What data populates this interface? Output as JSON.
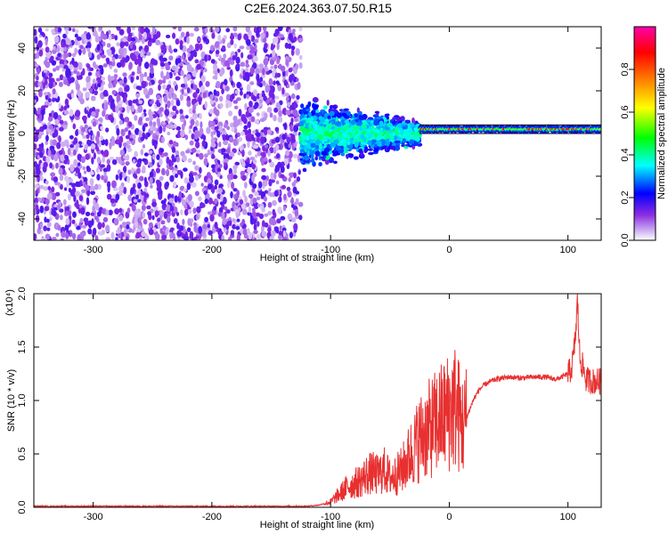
{
  "figure_title": "C2E6.2024.363.07.50.R15",
  "chart_data": [
    {
      "type": "heatmap",
      "title": "C2E6.2024.363.07.50.R15",
      "xlabel": "Height of straight line (km)",
      "ylabel": "Frequency (Hz)",
      "xlim": [
        -350,
        128
      ],
      "ylim": [
        -50,
        50
      ],
      "x_ticks": [
        -300,
        -200,
        -100,
        0,
        100
      ],
      "y_ticks": [
        -40,
        -20,
        0,
        20,
        40
      ],
      "colorbar": {
        "label": "Normalized spectral amplitude",
        "range": [
          0.0,
          1.0
        ],
        "ticks": [
          0.0,
          0.2,
          0.4,
          0.6,
          0.8
        ],
        "tick_labels": [
          "0.0",
          "0.2",
          "0.4",
          "0.6",
          "0.8"
        ],
        "colormap": [
          "#ffffff",
          "#8a2be2",
          "#0000ff",
          "#00ffff",
          "#00ff00",
          "#ffff00",
          "#ff7f00",
          "#ff0000",
          "#ff00ff"
        ]
      },
      "regions": [
        {
          "x_range": [
            -350,
            -125
          ],
          "freq_range": [
            -50,
            50
          ],
          "amplitude": "low (0.0–0.2)",
          "pattern": "broadband noise speckle"
        },
        {
          "x_range": [
            -125,
            -25
          ],
          "freq_range": [
            -20,
            20
          ],
          "amplitude": "0.2–0.5",
          "pattern": "narrowing cluster around 0 Hz"
        },
        {
          "x_range": [
            -25,
            128
          ],
          "freq_range": [
            -1,
            4
          ],
          "amplitude": "0.5–1.0",
          "pattern": "narrow band centered near 2 Hz"
        }
      ]
    },
    {
      "type": "line",
      "xlabel": "Height of straight line (km)",
      "ylabel": "SNR (10 * v/v)",
      "scale_label": "(x10⁴)",
      "xlim": [
        -350,
        128
      ],
      "ylim": [
        0,
        2.0
      ],
      "x_ticks": [
        -300,
        -200,
        -100,
        0,
        100
      ],
      "y_ticks": [
        0.0,
        0.5,
        1.0,
        1.5,
        2.0
      ],
      "y_tick_labels": [
        "0.0",
        "0.5",
        "1.0",
        "1.5",
        "2.0"
      ],
      "series": [
        {
          "color": "#e83030",
          "x": [
            -350,
            -300,
            -250,
            -200,
            -150,
            -120,
            -110,
            -100,
            -95,
            -90,
            -85,
            -80,
            -75,
            -70,
            -65,
            -60,
            -55,
            -50,
            -45,
            -40,
            -35,
            -30,
            -25,
            -20,
            -15,
            -10,
            -5,
            0,
            5,
            10,
            12,
            15,
            20,
            25,
            30,
            35,
            40,
            50,
            60,
            70,
            80,
            90,
            95,
            100,
            103,
            105,
            107,
            108,
            110,
            113,
            115,
            120,
            128
          ],
          "y": [
            0.01,
            0.01,
            0.01,
            0.01,
            0.01,
            0.01,
            0.02,
            0.05,
            0.1,
            0.15,
            0.2,
            0.22,
            0.25,
            0.3,
            0.32,
            0.3,
            0.35,
            0.28,
            0.3,
            0.35,
            0.45,
            0.55,
            0.65,
            0.7,
            0.75,
            0.8,
            0.85,
            0.9,
            0.95,
            0.8,
            0.75,
            0.85,
            1.0,
            1.1,
            1.15,
            1.18,
            1.2,
            1.22,
            1.21,
            1.22,
            1.22,
            1.2,
            1.22,
            1.25,
            1.3,
            1.45,
            1.7,
            1.95,
            1.4,
            1.3,
            1.2,
            1.18,
            1.18
          ]
        }
      ]
    }
  ]
}
